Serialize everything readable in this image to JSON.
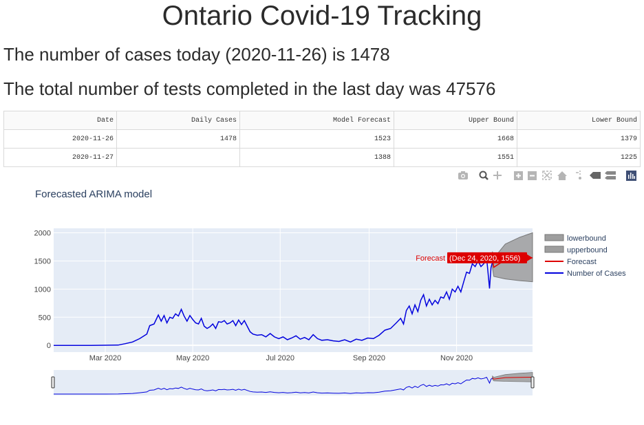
{
  "page": {
    "title": "Ontario Covid-19 Tracking",
    "cases_line": "The number of cases today (2020-11-26) is 1478",
    "tests_line": "The total number of tests completed in the last day was 47576"
  },
  "table": {
    "headers": [
      "Date",
      "Daily Cases",
      "Model Forecast",
      "Upper Bound",
      "Lower Bound"
    ],
    "rows": [
      [
        "2020-11-26",
        "1478",
        "1523",
        "1668",
        "1379"
      ],
      [
        "2020-11-27",
        "",
        "1388",
        "1551",
        "1225"
      ]
    ]
  },
  "modebar": {
    "icons": [
      "camera-icon",
      "zoom-icon",
      "pan-icon",
      "zoom-in-icon",
      "zoom-out-icon",
      "autoscale-icon",
      "reset-axes-icon",
      "spike-lines-icon",
      "hover-closest-icon",
      "hover-compare-icon",
      "plotly-logo-icon"
    ]
  },
  "chart_data": {
    "type": "line",
    "title": "Forecasted ARIMA model",
    "x_ticks": [
      "Mar 2020",
      "May 2020",
      "Jul 2020",
      "Sep 2020",
      "Nov 2020"
    ],
    "y_ticks": [
      "0",
      "500",
      "1000",
      "1500",
      "2000"
    ],
    "xlim": [
      "2020-01-25",
      "2020-12-24"
    ],
    "ylim": [
      -120,
      2080
    ],
    "grid": true,
    "legend_position": "right",
    "legend": [
      "lowerbound",
      "upperbound",
      "Forecast",
      "Number of Cases"
    ],
    "hover_label": {
      "series": "Forecast",
      "text": "(Dec 24, 2020, 1556)"
    },
    "series": [
      {
        "name": "Number of Cases",
        "color": "#0000dd",
        "points": [
          [
            "2020-01-25",
            0
          ],
          [
            "2020-02-20",
            0
          ],
          [
            "2020-03-01",
            2
          ],
          [
            "2020-03-10",
            5
          ],
          [
            "2020-03-15",
            30
          ],
          [
            "2020-03-20",
            60
          ],
          [
            "2020-03-25",
            120
          ],
          [
            "2020-03-30",
            200
          ],
          [
            "2020-04-01",
            350
          ],
          [
            "2020-04-04",
            380
          ],
          [
            "2020-04-07",
            540
          ],
          [
            "2020-04-09",
            430
          ],
          [
            "2020-04-11",
            530
          ],
          [
            "2020-04-13",
            400
          ],
          [
            "2020-04-15",
            500
          ],
          [
            "2020-04-17",
            480
          ],
          [
            "2020-04-19",
            560
          ],
          [
            "2020-04-21",
            520
          ],
          [
            "2020-04-23",
            640
          ],
          [
            "2020-04-25",
            520
          ],
          [
            "2020-04-27",
            430
          ],
          [
            "2020-04-29",
            530
          ],
          [
            "2020-05-01",
            460
          ],
          [
            "2020-05-03",
            400
          ],
          [
            "2020-05-05",
            380
          ],
          [
            "2020-05-07",
            480
          ],
          [
            "2020-05-09",
            340
          ],
          [
            "2020-05-11",
            300
          ],
          [
            "2020-05-13",
            330
          ],
          [
            "2020-05-15",
            380
          ],
          [
            "2020-05-17",
            300
          ],
          [
            "2020-05-19",
            420
          ],
          [
            "2020-05-21",
            410
          ],
          [
            "2020-05-23",
            440
          ],
          [
            "2020-05-25",
            380
          ],
          [
            "2020-05-27",
            400
          ],
          [
            "2020-05-29",
            440
          ],
          [
            "2020-05-31",
            350
          ],
          [
            "2020-06-02",
            450
          ],
          [
            "2020-06-04",
            370
          ],
          [
            "2020-06-06",
            440
          ],
          [
            "2020-06-08",
            340
          ],
          [
            "2020-06-10",
            240
          ],
          [
            "2020-06-12",
            200
          ],
          [
            "2020-06-15",
            180
          ],
          [
            "2020-06-18",
            190
          ],
          [
            "2020-06-21",
            150
          ],
          [
            "2020-06-24",
            210
          ],
          [
            "2020-06-27",
            150
          ],
          [
            "2020-06-30",
            120
          ],
          [
            "2020-07-03",
            150
          ],
          [
            "2020-07-06",
            100
          ],
          [
            "2020-07-09",
            130
          ],
          [
            "2020-07-12",
            170
          ],
          [
            "2020-07-15",
            110
          ],
          [
            "2020-07-18",
            140
          ],
          [
            "2020-07-21",
            100
          ],
          [
            "2020-07-24",
            190
          ],
          [
            "2020-07-27",
            120
          ],
          [
            "2020-07-30",
            90
          ],
          [
            "2020-08-03",
            100
          ],
          [
            "2020-08-07",
            80
          ],
          [
            "2020-08-11",
            70
          ],
          [
            "2020-08-15",
            100
          ],
          [
            "2020-08-19",
            60
          ],
          [
            "2020-08-23",
            110
          ],
          [
            "2020-08-27",
            90
          ],
          [
            "2020-08-31",
            130
          ],
          [
            "2020-09-04",
            120
          ],
          [
            "2020-09-08",
            180
          ],
          [
            "2020-09-12",
            270
          ],
          [
            "2020-09-16",
            300
          ],
          [
            "2020-09-20",
            400
          ],
          [
            "2020-09-23",
            480
          ],
          [
            "2020-09-25",
            380
          ],
          [
            "2020-09-27",
            620
          ],
          [
            "2020-09-29",
            700
          ],
          [
            "2020-10-01",
            560
          ],
          [
            "2020-10-03",
            720
          ],
          [
            "2020-10-05",
            600
          ],
          [
            "2020-10-07",
            800
          ],
          [
            "2020-10-09",
            900
          ],
          [
            "2020-10-11",
            700
          ],
          [
            "2020-10-13",
            820
          ],
          [
            "2020-10-15",
            720
          ],
          [
            "2020-10-17",
            800
          ],
          [
            "2020-10-19",
            740
          ],
          [
            "2020-10-21",
            860
          ],
          [
            "2020-10-23",
            840
          ],
          [
            "2020-10-25",
            950
          ],
          [
            "2020-10-27",
            820
          ],
          [
            "2020-10-29",
            1000
          ],
          [
            "2020-10-31",
            950
          ],
          [
            "2020-11-02",
            1050
          ],
          [
            "2020-11-04",
            950
          ],
          [
            "2020-11-06",
            1130
          ],
          [
            "2020-11-08",
            1300
          ],
          [
            "2020-11-10",
            1280
          ],
          [
            "2020-11-12",
            1450
          ],
          [
            "2020-11-14",
            1400
          ],
          [
            "2020-11-16",
            1500
          ],
          [
            "2020-11-18",
            1400
          ],
          [
            "2020-11-20",
            1450
          ],
          [
            "2020-11-22",
            1550
          ],
          [
            "2020-11-24",
            1010
          ],
          [
            "2020-11-25",
            1380
          ],
          [
            "2020-11-26",
            1478
          ]
        ]
      },
      {
        "name": "Forecast",
        "color": "#dd0000",
        "points": [
          [
            "2020-11-26",
            1523
          ],
          [
            "2020-11-27",
            1388
          ],
          [
            "2020-12-05",
            1520
          ],
          [
            "2020-12-24",
            1556
          ]
        ]
      },
      {
        "name": "upperbound",
        "color": "#888888",
        "points": [
          [
            "2020-11-26",
            1668
          ],
          [
            "2020-11-27",
            1551
          ],
          [
            "2020-12-05",
            1800
          ],
          [
            "2020-12-15",
            1920
          ],
          [
            "2020-12-24",
            2000
          ]
        ]
      },
      {
        "name": "lowerbound",
        "color": "#888888",
        "points": [
          [
            "2020-11-26",
            1379
          ],
          [
            "2020-11-27",
            1225
          ],
          [
            "2020-12-05",
            1180
          ],
          [
            "2020-12-15",
            1150
          ],
          [
            "2020-12-24",
            1130
          ]
        ]
      }
    ]
  }
}
